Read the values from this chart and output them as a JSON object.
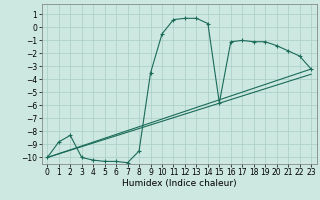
{
  "xlabel": "Humidex (Indice chaleur)",
  "bg_color": "#cde8e0",
  "grid_color": "#aacec6",
  "line_color": "#1a6b5a",
  "xlim": [
    -0.5,
    23.5
  ],
  "ylim": [
    -10.5,
    1.8
  ],
  "xtick_labels": [
    "0",
    "1",
    "2",
    "3",
    "4",
    "5",
    "6",
    "7",
    "8",
    "9",
    "10",
    "11",
    "12",
    "13",
    "14",
    "15",
    "16",
    "17",
    "18",
    "19",
    "20",
    "21",
    "22",
    "23"
  ],
  "xticks": [
    0,
    1,
    2,
    3,
    4,
    5,
    6,
    7,
    8,
    9,
    10,
    11,
    12,
    13,
    14,
    15,
    16,
    17,
    18,
    19,
    20,
    21,
    22,
    23
  ],
  "yticks": [
    1,
    0,
    -1,
    -2,
    -3,
    -4,
    -5,
    -6,
    -7,
    -8,
    -9,
    -10
  ],
  "curve_x": [
    0,
    1,
    2,
    3,
    4,
    5,
    6,
    7,
    8,
    9,
    10,
    11,
    12,
    13,
    14,
    15,
    16,
    17,
    18,
    19,
    20,
    21,
    22,
    23
  ],
  "curve_y": [
    -10.0,
    -8.8,
    -8.3,
    -10.0,
    -10.2,
    -10.3,
    -10.3,
    -10.4,
    -9.5,
    -3.5,
    -0.5,
    0.6,
    0.7,
    0.7,
    0.3,
    -5.8,
    -1.1,
    -1.0,
    -1.1,
    -1.1,
    -1.4,
    -1.8,
    -2.2,
    -3.2
  ],
  "line1_x": [
    0,
    23
  ],
  "line1_y": [
    -10.0,
    -3.2
  ],
  "line2_x": [
    0,
    23
  ],
  "line2_y": [
    -10.0,
    -3.6
  ],
  "tick_fontsize": 5.5,
  "xlabel_fontsize": 6.5
}
